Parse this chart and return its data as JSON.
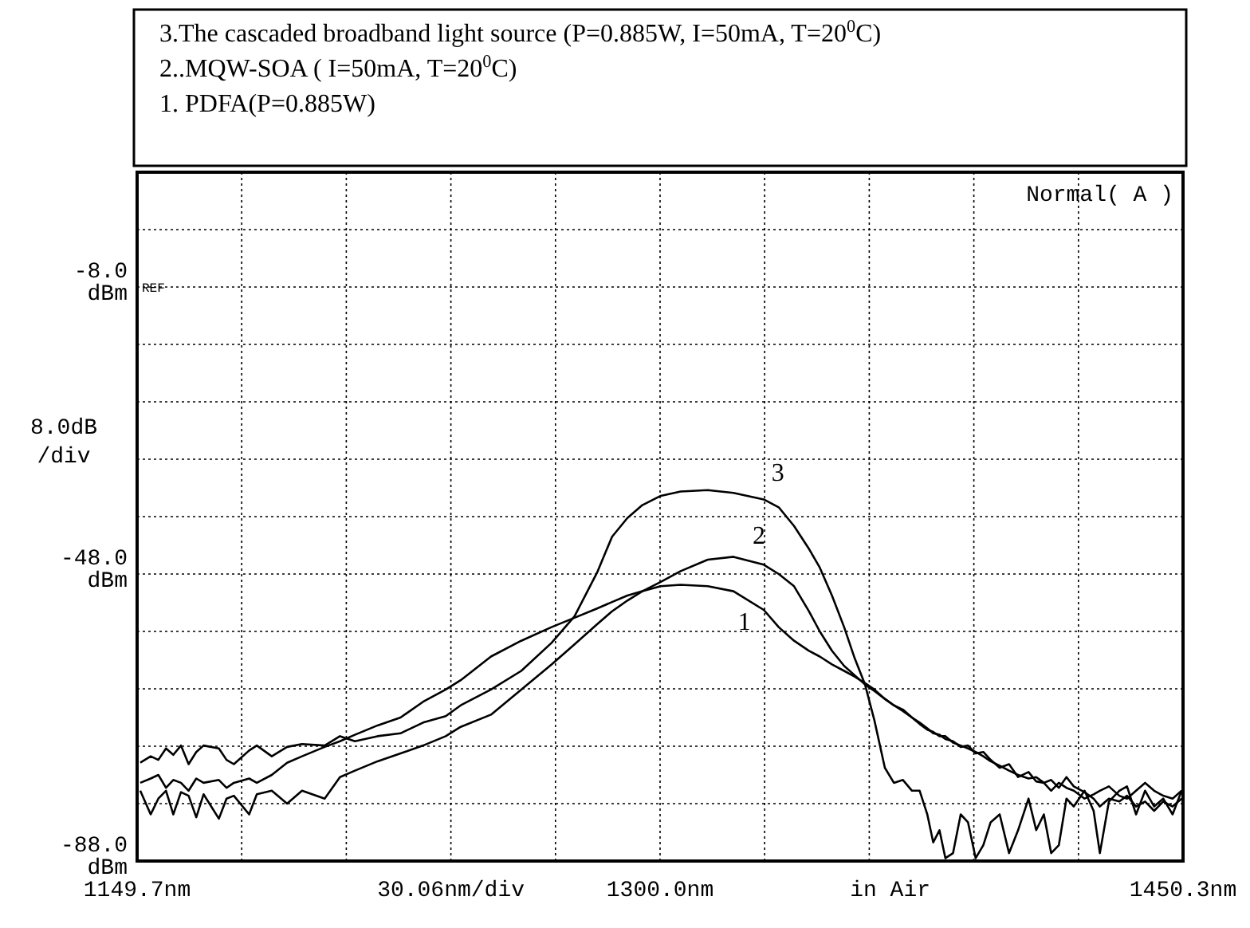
{
  "chart_data": {
    "type": "line",
    "annotations": [
      "3.The cascaded broadband light source (P=0.885W, I=50mA, T=20$^{0}$C)",
      "2..MQW-SOA ( I=50mA, T=20$^{0}$C)",
      "1. PDFA(P=0.885W)",
      "Normal( A )",
      "REF",
      "in Air"
    ],
    "xlabel": "30.06nm/div",
    "ylabel": "8.0dB /div",
    "x": [
      1150.6,
      1153.6,
      1155.8,
      1158.0,
      1160.1,
      1162.3,
      1164.5,
      1166.7,
      1168.8,
      1173.2,
      1175.4,
      1177.5,
      1181.9,
      1184.1,
      1188.4,
      1192.8,
      1197.1,
      1203.6,
      1208.0,
      1212.3,
      1218.8,
      1225.4,
      1231.9,
      1238.4,
      1242.7,
      1251.4,
      1260.1,
      1268.8,
      1275.4,
      1281.9,
      1286.2,
      1290.6,
      1294.9,
      1300.2,
      1305.9,
      1313.7,
      1321.1,
      1329.8,
      1334.1,
      1338.5,
      1342.8,
      1345.9,
      1349.4,
      1352.9,
      1355.9,
      1358.9,
      1361.6,
      1364.6,
      1367.2,
      1369.8,
      1372.4,
      1374.6,
      1376.8,
      1378.5,
      1380.3,
      1382.0,
      1384.2,
      1386.4,
      1388.5,
      1390.7,
      1392.9,
      1395.0,
      1397.6,
      1400.3,
      1402.9,
      1405.9,
      1408.1,
      1410.3,
      1412.4,
      1414.6,
      1416.8,
      1418.9,
      1422.0,
      1424.6,
      1426.4,
      1429.0,
      1432.0,
      1434.2,
      1436.8,
      1439.4,
      1442.0,
      1444.6,
      1447.3,
      1449.9
    ],
    "series": [
      {
        "name": "1",
        "color": "#000000",
        "values": [
          -77.1,
          -76.5,
          -76.0,
          -77.8,
          -76.7,
          -77.1,
          -78.2,
          -76.5,
          -77.1,
          -76.7,
          -77.8,
          -77.1,
          -76.5,
          -77.1,
          -76.0,
          -74.3,
          -73.4,
          -72.1,
          -71.3,
          -70.4,
          -69.1,
          -68.0,
          -65.8,
          -64.1,
          -62.8,
          -59.5,
          -57.3,
          -55.4,
          -54.1,
          -52.8,
          -51.9,
          -51.0,
          -50.4,
          -49.7,
          -49.5,
          -49.7,
          -50.4,
          -53.0,
          -55.4,
          -57.3,
          -58.7,
          -59.5,
          -60.6,
          -61.5,
          -62.3,
          -63.2,
          -64.1,
          -65.4,
          -66.3,
          -66.9,
          -68.0,
          -68.9,
          -69.7,
          -70.0,
          -70.6,
          -70.6,
          -71.5,
          -71.9,
          -72.3,
          -72.8,
          -73.4,
          -74.1,
          -74.7,
          -75.4,
          -76.0,
          -76.5,
          -76.3,
          -77.1,
          -78.2,
          -77.1,
          -77.8,
          -78.2,
          -79.3,
          -78.7,
          -78.2,
          -77.6,
          -78.9,
          -79.3,
          -78.2,
          -77.1,
          -78.2,
          -78.9,
          -79.3,
          -78.2
        ]
      },
      {
        "name": "2",
        "color": "#000000",
        "values": [
          -78.2,
          -81.5,
          -79.3,
          -78.2,
          -81.5,
          -78.4,
          -78.9,
          -81.9,
          -78.7,
          -82.1,
          -79.3,
          -78.9,
          -81.5,
          -78.7,
          -78.2,
          -80.0,
          -78.2,
          -79.3,
          -76.3,
          -75.4,
          -74.1,
          -73.0,
          -71.9,
          -70.6,
          -69.3,
          -67.6,
          -64.1,
          -60.6,
          -57.8,
          -55.0,
          -53.2,
          -51.7,
          -50.4,
          -49.1,
          -47.6,
          -46.0,
          -45.6,
          -46.7,
          -48.0,
          -49.7,
          -53.2,
          -56.0,
          -58.7,
          -60.8,
          -62.1,
          -63.4,
          -64.3,
          -65.4,
          -66.3,
          -67.1,
          -68.0,
          -68.7,
          -69.5,
          -70.2,
          -70.4,
          -71.0,
          -71.3,
          -72.1,
          -71.9,
          -73.0,
          -72.8,
          -73.9,
          -75.0,
          -74.5,
          -76.3,
          -75.6,
          -76.9,
          -77.1,
          -76.7,
          -77.8,
          -76.3,
          -77.6,
          -78.4,
          -79.3,
          -80.4,
          -79.3,
          -79.7,
          -78.9,
          -80.4,
          -79.7,
          -81.0,
          -79.7,
          -80.4,
          -79.3
        ]
      },
      {
        "name": "3",
        "color": "#000000",
        "values": [
          -74.3,
          -73.4,
          -73.9,
          -72.3,
          -73.2,
          -71.9,
          -74.5,
          -72.8,
          -71.9,
          -72.3,
          -73.9,
          -74.5,
          -72.6,
          -71.9,
          -73.4,
          -72.1,
          -71.7,
          -71.9,
          -70.6,
          -71.3,
          -70.6,
          -70.2,
          -68.7,
          -67.8,
          -66.3,
          -64.1,
          -61.5,
          -57.6,
          -53.9,
          -47.8,
          -42.8,
          -40.2,
          -38.4,
          -37.1,
          -36.5,
          -36.3,
          -36.7,
          -37.6,
          -38.7,
          -41.3,
          -44.5,
          -47.1,
          -51.0,
          -55.4,
          -59.7,
          -63.4,
          -68.4,
          -75.0,
          -77.1,
          -76.7,
          -78.2,
          -78.2,
          -81.5,
          -85.4,
          -83.7,
          -87.6,
          -86.9,
          -81.5,
          -82.6,
          -87.6,
          -85.8,
          -82.6,
          -81.5,
          -86.9,
          -83.7,
          -79.3,
          -83.7,
          -81.5,
          -86.9,
          -85.8,
          -79.3,
          -80.4,
          -78.2,
          -81.0,
          -86.9,
          -79.7,
          -78.2,
          -77.6,
          -81.5,
          -78.2,
          -80.4,
          -79.3,
          -81.5,
          -78.2
        ]
      }
    ],
    "xlim": [
      1149.7,
      1450.3
    ],
    "xticks": [
      {
        "value": 1149.7,
        "label": "1149.7nm"
      },
      {
        "value": 1179.76,
        "label": null
      },
      {
        "value": 1209.82,
        "label": null
      },
      {
        "value": 1239.88,
        "label": null
      },
      {
        "value": 1269.94,
        "label": null
      },
      {
        "value": 1300.0,
        "label": "1300.0nm"
      },
      {
        "value": 1330.06,
        "label": null
      },
      {
        "value": 1360.12,
        "label": null
      },
      {
        "value": 1390.18,
        "label": null
      },
      {
        "value": 1420.24,
        "label": null
      },
      {
        "value": 1450.3,
        "label": "1450.3nm"
      }
    ],
    "ylim": [
      -88,
      8
    ],
    "yticks": [
      {
        "value": -88,
        "label": "-88.0 dBm"
      },
      {
        "value": -80,
        "label": null
      },
      {
        "value": -72,
        "label": null
      },
      {
        "value": -64,
        "label": null
      },
      {
        "value": -56,
        "label": null
      },
      {
        "value": -48,
        "label": "-48.0 dBm"
      },
      {
        "value": -40,
        "label": null
      },
      {
        "value": -32,
        "label": null
      },
      {
        "value": -24,
        "label": null
      },
      {
        "value": -16,
        "label": null
      },
      {
        "value": -8,
        "label": "-8.0 dBm"
      },
      {
        "value": 0,
        "label": null
      },
      {
        "value": 8,
        "label": null
      }
    ],
    "grid": true,
    "marker": "none",
    "line_style": "solid"
  }
}
